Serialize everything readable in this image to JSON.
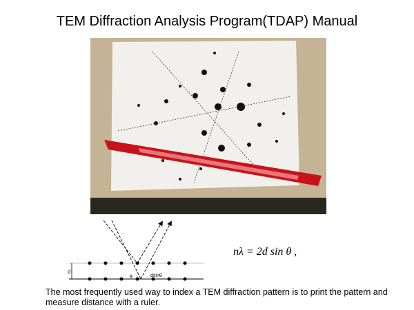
{
  "header": {
    "title": "TEM Diffraction Analysis Program(TDAP) Manual"
  },
  "diagram": {
    "spacing_label": "d",
    "angle_label": "θ",
    "path_label": "dsinθ"
  },
  "equation": "nλ = 2d sin θ ,",
  "caption": "The most frequently used way to index a TEM diffraction pattern is to print the pattern and measure distance with a ruler."
}
